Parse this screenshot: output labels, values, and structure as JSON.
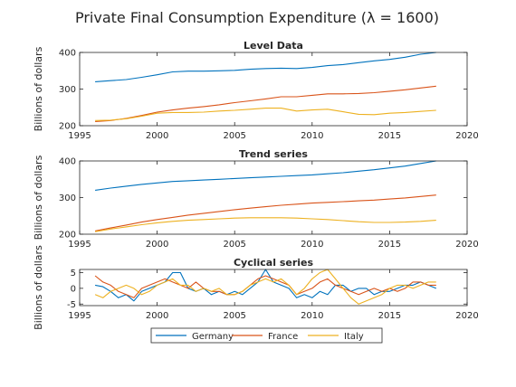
{
  "figure": {
    "title": "Private Final Consumption Expenditure (λ = 1600)"
  },
  "colors": {
    "Germany": "#0072BD",
    "France": "#D95319",
    "Italy": "#EDB120"
  },
  "legend": {
    "placement": "bottom-center",
    "entries": [
      "Germany",
      "France",
      "Italy"
    ]
  },
  "chart_data": [
    {
      "type": "line",
      "title": "Level Data",
      "ylabel": "Billions of dollars",
      "xlabel": "",
      "xlim": [
        1995,
        2020
      ],
      "ylim": [
        200,
        400
      ],
      "xticks": [
        1995,
        2000,
        2005,
        2010,
        2015,
        2020
      ],
      "yticks": [
        200,
        300,
        400
      ],
      "grid": false,
      "x": [
        1996,
        1997,
        1998,
        1999,
        2000,
        2001,
        2002,
        2003,
        2004,
        2005,
        2006,
        2007,
        2008,
        2009,
        2010,
        2011,
        2012,
        2013,
        2014,
        2015,
        2016,
        2017,
        2018
      ],
      "series": [
        {
          "name": "Germany",
          "values": [
            320,
            323,
            326,
            332,
            339,
            347,
            349,
            349,
            350,
            351,
            354,
            356,
            357,
            356,
            359,
            364,
            367,
            372,
            377,
            381,
            387,
            395,
            400
          ]
        },
        {
          "name": "France",
          "values": [
            211,
            214,
            220,
            228,
            237,
            243,
            248,
            252,
            257,
            263,
            268,
            273,
            279,
            279,
            283,
            287,
            287,
            288,
            290,
            294,
            298,
            303,
            308
          ]
        },
        {
          "name": "Italy",
          "values": [
            214,
            215,
            219,
            226,
            234,
            236,
            236,
            237,
            240,
            242,
            245,
            248,
            248,
            240,
            243,
            245,
            238,
            231,
            230,
            234,
            236,
            239,
            242
          ]
        }
      ]
    },
    {
      "type": "line",
      "title": "Trend series",
      "ylabel": "Billions of dollars",
      "xlabel": "",
      "xlim": [
        1995,
        2020
      ],
      "ylim": [
        200,
        400
      ],
      "xticks": [
        1995,
        2000,
        2005,
        2010,
        2015,
        2020
      ],
      "yticks": [
        200,
        300,
        400
      ],
      "grid": false,
      "x": [
        1996,
        1997,
        1998,
        1999,
        2000,
        2001,
        2002,
        2003,
        2004,
        2005,
        2006,
        2007,
        2008,
        2009,
        2010,
        2011,
        2012,
        2013,
        2014,
        2015,
        2016,
        2017,
        2018
      ],
      "series": [
        {
          "name": "Germany",
          "values": [
            320,
            326,
            331,
            336,
            340,
            344,
            346,
            348,
            350,
            352,
            354,
            356,
            358,
            360,
            362,
            365,
            368,
            372,
            376,
            381,
            386,
            393,
            400
          ]
        },
        {
          "name": "France",
          "values": [
            209,
            217,
            225,
            233,
            240,
            246,
            252,
            257,
            262,
            267,
            271,
            275,
            279,
            282,
            285,
            287,
            289,
            291,
            293,
            296,
            299,
            303,
            307
          ]
        },
        {
          "name": "Italy",
          "values": [
            207,
            214,
            220,
            226,
            231,
            235,
            238,
            240,
            242,
            244,
            245,
            245,
            245,
            244,
            242,
            240,
            237,
            234,
            232,
            232,
            233,
            235,
            238
          ]
        }
      ]
    },
    {
      "type": "line",
      "title": "Cyclical series",
      "ylabel": "Billions of dollars",
      "xlabel": "",
      "xlim": [
        1995,
        2020
      ],
      "ylim": [
        -5.5,
        6
      ],
      "xticks": [
        1995,
        2000,
        2005,
        2010,
        2015,
        2020
      ],
      "yticks": [
        -5,
        0,
        5
      ],
      "grid": false,
      "x": [
        1996,
        1996.5,
        1997,
        1997.5,
        1998,
        1998.5,
        1999,
        1999.5,
        2000,
        2000.5,
        2001,
        2001.5,
        2002,
        2002.5,
        2003,
        2003.5,
        2004,
        2004.5,
        2005,
        2005.5,
        2006,
        2006.5,
        2007,
        2007.5,
        2008,
        2008.5,
        2009,
        2009.5,
        2010,
        2010.5,
        2011,
        2011.5,
        2012,
        2012.5,
        2013,
        2013.5,
        2014,
        2014.5,
        2015,
        2015.5,
        2016,
        2016.5,
        2017,
        2017.5,
        2018
      ],
      "series": [
        {
          "name": "Germany",
          "values": [
            1,
            0.5,
            -1,
            -3,
            -2,
            -4,
            -1,
            0,
            1,
            2,
            5,
            5,
            0,
            -1,
            0,
            -2,
            -1,
            -2,
            -1,
            -2,
            0,
            2,
            6,
            2,
            1,
            0,
            -3,
            -2,
            -3,
            -1,
            -2,
            1,
            1,
            -1,
            0,
            0,
            -2,
            -1,
            -1,
            0,
            1,
            1,
            2,
            1,
            0
          ]
        },
        {
          "name": "France",
          "values": [
            4,
            2,
            1,
            -1,
            -2,
            -3,
            0,
            1,
            2,
            3,
            2,
            1,
            0,
            2,
            0,
            -1,
            -1,
            -2,
            -2,
            -1,
            1,
            3,
            4,
            3,
            2,
            1,
            -2,
            -1,
            0,
            2,
            3,
            1,
            0,
            -1,
            -2,
            -1,
            0,
            -1,
            0,
            -1,
            0,
            2,
            2,
            1,
            1
          ]
        },
        {
          "name": "Italy",
          "values": [
            -2,
            -3,
            -1,
            0,
            1,
            0,
            -2,
            -1,
            1,
            2,
            3,
            1,
            1,
            -1,
            0,
            -1,
            0,
            -2,
            -2,
            -1,
            1,
            2,
            3,
            2,
            3,
            1,
            -2,
            0,
            3,
            5,
            6,
            3,
            0,
            -3,
            -5,
            -4,
            -3,
            -2,
            0,
            1,
            1,
            0,
            1,
            2,
            2
          ]
        }
      ]
    }
  ]
}
